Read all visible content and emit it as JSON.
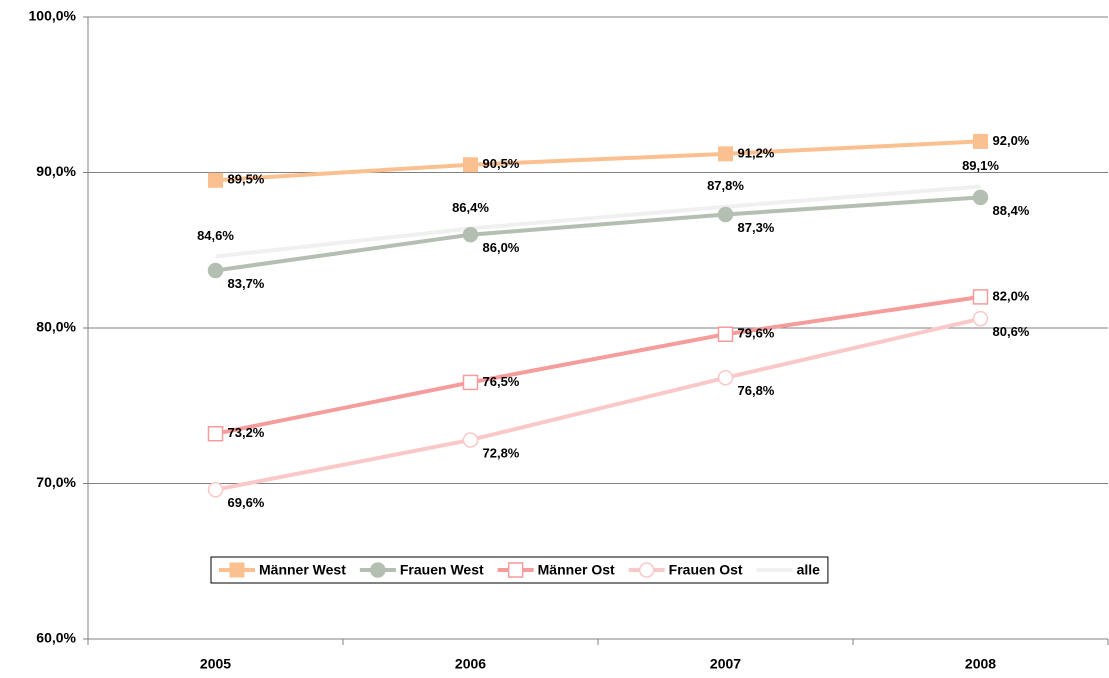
{
  "chart_data": {
    "type": "line",
    "categories": [
      "2005",
      "2006",
      "2007",
      "2008"
    ],
    "ylim": [
      60,
      100
    ],
    "yticks": [
      {
        "value": 60,
        "label": "60,0%"
      },
      {
        "value": 70,
        "label": "70,0%"
      },
      {
        "value": 80,
        "label": "80,0%"
      },
      {
        "value": 90,
        "label": "90,0%"
      },
      {
        "value": 100,
        "label": "100,0%"
      }
    ],
    "grid": true,
    "legend": "bottom",
    "series": [
      {
        "name": "Männer West",
        "color": "#fac090",
        "marker": "square",
        "values": [
          89.5,
          90.5,
          91.2,
          92.0
        ],
        "value_labels": [
          "89,5%",
          "90,5%",
          "91,2%",
          "92,0%"
        ]
      },
      {
        "name": "Frauen West",
        "color": "#b3bfb0",
        "marker": "circle",
        "values": [
          83.7,
          86.0,
          87.3,
          88.4
        ],
        "value_labels": [
          "83,7%",
          "86,0%",
          "87,3%",
          "88,4%"
        ]
      },
      {
        "name": "Männer Ost",
        "color": "#f59c9c",
        "marker": "open-square",
        "values": [
          73.2,
          76.5,
          79.6,
          82.0
        ],
        "value_labels": [
          "73,2%",
          "76,5%",
          "79,6%",
          "82,0%"
        ]
      },
      {
        "name": "Frauen Ost",
        "color": "#fac8c8",
        "marker": "open-circle",
        "values": [
          69.6,
          72.8,
          76.8,
          80.6
        ],
        "value_labels": [
          "69,6%",
          "72,8%",
          "76,8%",
          "80,6%"
        ]
      },
      {
        "name": "alle",
        "color": "#f0f0f0",
        "marker": "none",
        "values": [
          84.6,
          86.4,
          87.8,
          89.1
        ],
        "value_labels": [
          "84,6%",
          "86,4%",
          "87,8%",
          "89,1%"
        ]
      }
    ]
  }
}
